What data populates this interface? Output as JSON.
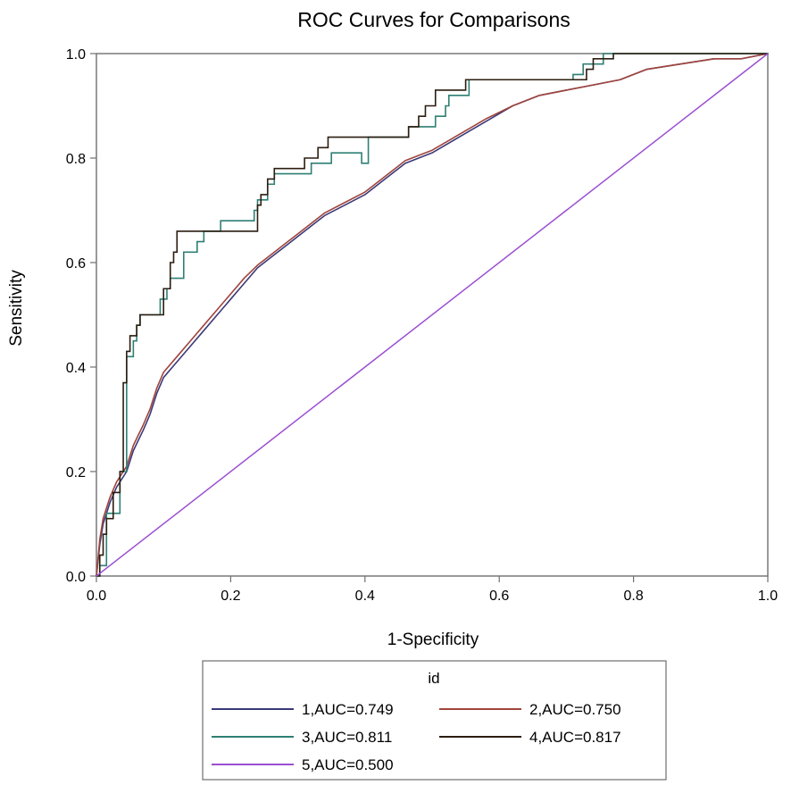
{
  "chart_data": {
    "type": "line",
    "title": "ROC Curves for Comparisons",
    "xlabel": "1-Specificity",
    "ylabel": "Sensitivity",
    "xlim": [
      0,
      1
    ],
    "ylim": [
      0,
      1
    ],
    "x_ticks": [
      "0.0",
      "0.2",
      "0.4",
      "0.6",
      "0.8",
      "1.0"
    ],
    "y_ticks": [
      "0.0",
      "0.2",
      "0.4",
      "0.6",
      "0.8",
      "1.0"
    ],
    "grid": false,
    "legend": {
      "title": "id",
      "placement": "bottom-center"
    },
    "series": [
      {
        "name": "1,AUC=0.749",
        "color": "#3a3a78",
        "style": "smooth",
        "points": [
          [
            0,
            0
          ],
          [
            0.005,
            0.06
          ],
          [
            0.01,
            0.1
          ],
          [
            0.02,
            0.14
          ],
          [
            0.03,
            0.17
          ],
          [
            0.045,
            0.2
          ],
          [
            0.055,
            0.24
          ],
          [
            0.07,
            0.28
          ],
          [
            0.08,
            0.31
          ],
          [
            0.09,
            0.35
          ],
          [
            0.1,
            0.38
          ],
          [
            0.12,
            0.41
          ],
          [
            0.14,
            0.44
          ],
          [
            0.16,
            0.47
          ],
          [
            0.18,
            0.5
          ],
          [
            0.2,
            0.53
          ],
          [
            0.22,
            0.56
          ],
          [
            0.24,
            0.59
          ],
          [
            0.26,
            0.61
          ],
          [
            0.28,
            0.63
          ],
          [
            0.3,
            0.65
          ],
          [
            0.32,
            0.67
          ],
          [
            0.34,
            0.69
          ],
          [
            0.37,
            0.71
          ],
          [
            0.4,
            0.73
          ],
          [
            0.43,
            0.76
          ],
          [
            0.46,
            0.79
          ],
          [
            0.5,
            0.81
          ],
          [
            0.54,
            0.84
          ],
          [
            0.58,
            0.87
          ],
          [
            0.62,
            0.9
          ],
          [
            0.66,
            0.92
          ],
          [
            0.7,
            0.93
          ],
          [
            0.74,
            0.94
          ],
          [
            0.78,
            0.95
          ],
          [
            0.82,
            0.97
          ],
          [
            0.87,
            0.98
          ],
          [
            0.92,
            0.99
          ],
          [
            0.96,
            0.99
          ],
          [
            1,
            1
          ]
        ]
      },
      {
        "name": "2,AUC=0.750",
        "color": "#a0443c",
        "style": "smooth",
        "points": [
          [
            0,
            0
          ],
          [
            0.005,
            0.07
          ],
          [
            0.01,
            0.11
          ],
          [
            0.02,
            0.15
          ],
          [
            0.03,
            0.18
          ],
          [
            0.045,
            0.21
          ],
          [
            0.055,
            0.25
          ],
          [
            0.07,
            0.29
          ],
          [
            0.08,
            0.32
          ],
          [
            0.09,
            0.36
          ],
          [
            0.1,
            0.39
          ],
          [
            0.12,
            0.42
          ],
          [
            0.14,
            0.45
          ],
          [
            0.16,
            0.48
          ],
          [
            0.18,
            0.51
          ],
          [
            0.2,
            0.54
          ],
          [
            0.22,
            0.57
          ],
          [
            0.24,
            0.595
          ],
          [
            0.26,
            0.615
          ],
          [
            0.28,
            0.635
          ],
          [
            0.3,
            0.655
          ],
          [
            0.32,
            0.675
          ],
          [
            0.34,
            0.695
          ],
          [
            0.37,
            0.715
          ],
          [
            0.4,
            0.735
          ],
          [
            0.43,
            0.765
          ],
          [
            0.46,
            0.795
          ],
          [
            0.5,
            0.815
          ],
          [
            0.54,
            0.845
          ],
          [
            0.58,
            0.875
          ],
          [
            0.62,
            0.9
          ],
          [
            0.66,
            0.92
          ],
          [
            0.7,
            0.93
          ],
          [
            0.74,
            0.94
          ],
          [
            0.78,
            0.95
          ],
          [
            0.82,
            0.97
          ],
          [
            0.87,
            0.98
          ],
          [
            0.92,
            0.99
          ],
          [
            0.96,
            0.99
          ],
          [
            1,
            1
          ]
        ]
      },
      {
        "name": "3,AUC=0.811",
        "color": "#2f7f73",
        "style": "step",
        "points": [
          [
            0,
            0
          ],
          [
            0.005,
            0
          ],
          [
            0.005,
            0.02
          ],
          [
            0.015,
            0.02
          ],
          [
            0.015,
            0.12
          ],
          [
            0.035,
            0.12
          ],
          [
            0.035,
            0.2
          ],
          [
            0.045,
            0.2
          ],
          [
            0.045,
            0.42
          ],
          [
            0.055,
            0.42
          ],
          [
            0.055,
            0.45
          ],
          [
            0.06,
            0.45
          ],
          [
            0.06,
            0.48
          ],
          [
            0.065,
            0.48
          ],
          [
            0.065,
            0.5
          ],
          [
            0.095,
            0.5
          ],
          [
            0.095,
            0.53
          ],
          [
            0.105,
            0.53
          ],
          [
            0.105,
            0.55
          ],
          [
            0.11,
            0.55
          ],
          [
            0.11,
            0.57
          ],
          [
            0.13,
            0.57
          ],
          [
            0.13,
            0.62
          ],
          [
            0.15,
            0.62
          ],
          [
            0.15,
            0.64
          ],
          [
            0.16,
            0.64
          ],
          [
            0.16,
            0.66
          ],
          [
            0.185,
            0.66
          ],
          [
            0.185,
            0.68
          ],
          [
            0.235,
            0.68
          ],
          [
            0.235,
            0.7
          ],
          [
            0.24,
            0.7
          ],
          [
            0.24,
            0.72
          ],
          [
            0.255,
            0.72
          ],
          [
            0.255,
            0.75
          ],
          [
            0.265,
            0.75
          ],
          [
            0.265,
            0.77
          ],
          [
            0.32,
            0.77
          ],
          [
            0.32,
            0.79
          ],
          [
            0.35,
            0.79
          ],
          [
            0.35,
            0.81
          ],
          [
            0.395,
            0.81
          ],
          [
            0.395,
            0.79
          ],
          [
            0.405,
            0.79
          ],
          [
            0.405,
            0.81
          ],
          [
            0.405,
            0.84
          ],
          [
            0.465,
            0.84
          ],
          [
            0.465,
            0.86
          ],
          [
            0.505,
            0.86
          ],
          [
            0.505,
            0.88
          ],
          [
            0.52,
            0.88
          ],
          [
            0.52,
            0.9
          ],
          [
            0.525,
            0.9
          ],
          [
            0.525,
            0.92
          ],
          [
            0.555,
            0.92
          ],
          [
            0.555,
            0.95
          ],
          [
            0.71,
            0.95
          ],
          [
            0.71,
            0.96
          ],
          [
            0.725,
            0.96
          ],
          [
            0.725,
            0.98
          ],
          [
            0.755,
            0.98
          ],
          [
            0.755,
            1
          ],
          [
            1,
            1
          ]
        ]
      },
      {
        "name": "4,AUC=0.817",
        "color": "#2b1d10",
        "style": "step",
        "points": [
          [
            0,
            0
          ],
          [
            0.005,
            0
          ],
          [
            0.005,
            0.04
          ],
          [
            0.01,
            0.04
          ],
          [
            0.01,
            0.08
          ],
          [
            0.015,
            0.08
          ],
          [
            0.015,
            0.11
          ],
          [
            0.025,
            0.11
          ],
          [
            0.025,
            0.16
          ],
          [
            0.035,
            0.16
          ],
          [
            0.035,
            0.2
          ],
          [
            0.04,
            0.2
          ],
          [
            0.04,
            0.37
          ],
          [
            0.045,
            0.37
          ],
          [
            0.045,
            0.43
          ],
          [
            0.05,
            0.43
          ],
          [
            0.05,
            0.46
          ],
          [
            0.06,
            0.46
          ],
          [
            0.06,
            0.48
          ],
          [
            0.065,
            0.48
          ],
          [
            0.065,
            0.5
          ],
          [
            0.1,
            0.5
          ],
          [
            0.1,
            0.55
          ],
          [
            0.11,
            0.55
          ],
          [
            0.11,
            0.6
          ],
          [
            0.115,
            0.6
          ],
          [
            0.115,
            0.62
          ],
          [
            0.12,
            0.62
          ],
          [
            0.12,
            0.66
          ],
          [
            0.185,
            0.66
          ],
          [
            0.185,
            0.66
          ],
          [
            0.24,
            0.66
          ],
          [
            0.24,
            0.71
          ],
          [
            0.245,
            0.71
          ],
          [
            0.245,
            0.73
          ],
          [
            0.255,
            0.73
          ],
          [
            0.255,
            0.76
          ],
          [
            0.265,
            0.76
          ],
          [
            0.265,
            0.78
          ],
          [
            0.31,
            0.78
          ],
          [
            0.31,
            0.8
          ],
          [
            0.33,
            0.8
          ],
          [
            0.33,
            0.82
          ],
          [
            0.345,
            0.82
          ],
          [
            0.345,
            0.84
          ],
          [
            0.465,
            0.84
          ],
          [
            0.465,
            0.86
          ],
          [
            0.48,
            0.86
          ],
          [
            0.48,
            0.88
          ],
          [
            0.49,
            0.88
          ],
          [
            0.49,
            0.9
          ],
          [
            0.505,
            0.9
          ],
          [
            0.505,
            0.93
          ],
          [
            0.55,
            0.93
          ],
          [
            0.55,
            0.95
          ],
          [
            0.73,
            0.95
          ],
          [
            0.73,
            0.97
          ],
          [
            0.74,
            0.97
          ],
          [
            0.74,
            0.99
          ],
          [
            0.77,
            0.99
          ],
          [
            0.77,
            1
          ],
          [
            1,
            1
          ]
        ]
      },
      {
        "name": "5,AUC=0.500",
        "color": "#9b4fd1",
        "style": "straight",
        "points": [
          [
            0,
            0
          ],
          [
            1,
            1
          ]
        ]
      }
    ]
  }
}
